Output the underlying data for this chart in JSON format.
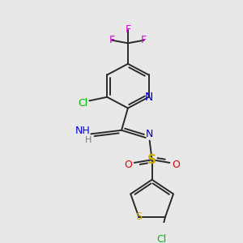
{
  "background_color": "#e8e8e8",
  "bond_color": "#2a2a2a",
  "atom_colors": {
    "F": "#e000e0",
    "Cl": "#00bb00",
    "N": "#0000ee",
    "O": "#ee0000",
    "S": "#ccaa00",
    "C": "#2a2a2a",
    "H": "#777777"
  },
  "figsize": [
    3.0,
    3.0
  ],
  "dpi": 100
}
